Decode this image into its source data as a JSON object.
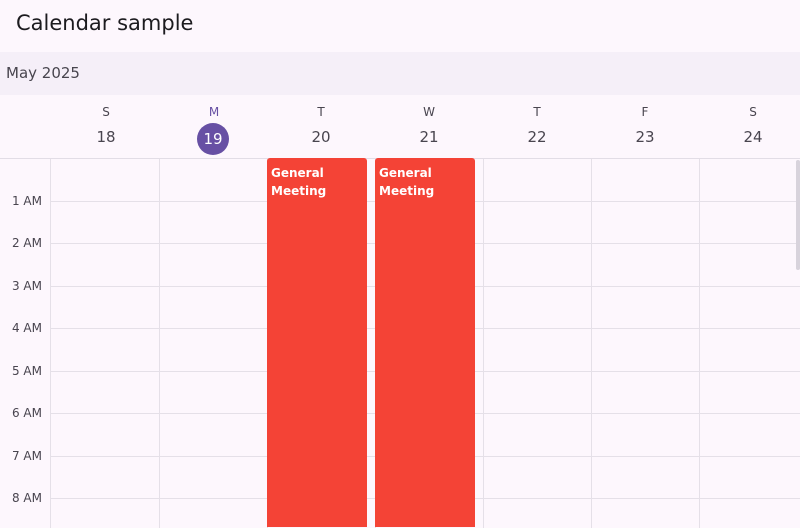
{
  "app": {
    "title": "Calendar sample"
  },
  "calendar": {
    "month_label": "May 2025",
    "today_color": "#6750a4",
    "event_color": "#f44336",
    "days": [
      {
        "letter": "S",
        "number": "18",
        "today": false
      },
      {
        "letter": "M",
        "number": "19",
        "today": true
      },
      {
        "letter": "T",
        "number": "20",
        "today": false
      },
      {
        "letter": "W",
        "number": "21",
        "today": false
      },
      {
        "letter": "T",
        "number": "22",
        "today": false
      },
      {
        "letter": "F",
        "number": "23",
        "today": false
      },
      {
        "letter": "S",
        "number": "24",
        "today": false
      }
    ],
    "time_labels": [
      "1 AM",
      "2 AM",
      "3 AM",
      "4 AM",
      "5 AM",
      "6 AM",
      "7 AM",
      "8 AM"
    ],
    "events": [
      {
        "title": "General Meeting",
        "day": "20"
      },
      {
        "title": "General Meeting",
        "day": "21"
      }
    ]
  }
}
